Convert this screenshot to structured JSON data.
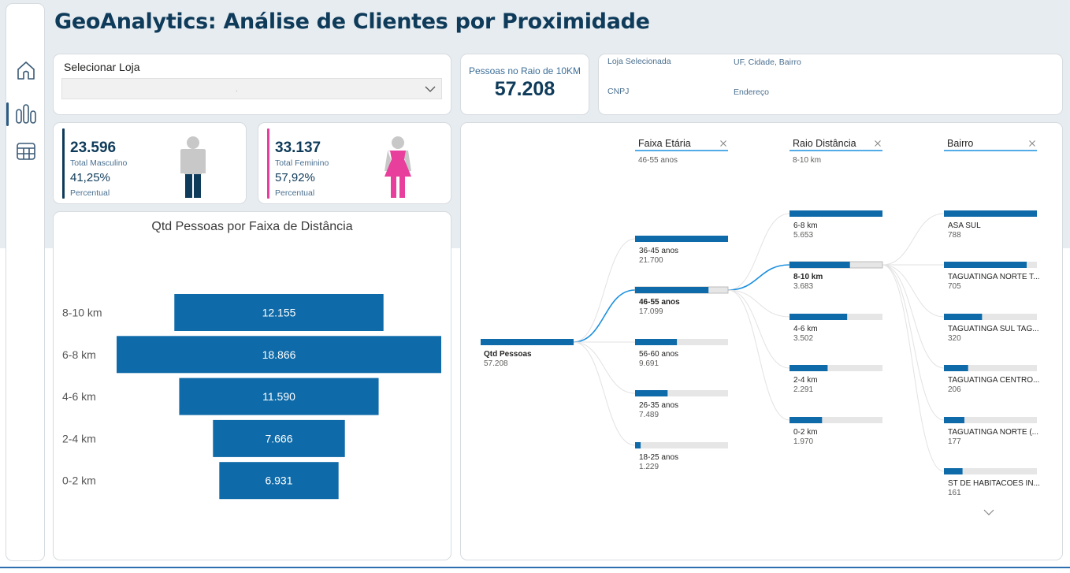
{
  "title": "GeoAnalytics: Análise de Clientes por Proximidade",
  "nav": {
    "items": [
      {
        "icon": "home-icon",
        "active": false
      },
      {
        "icon": "bar-chart-icon",
        "active": true
      },
      {
        "icon": "table-icon",
        "active": false
      }
    ]
  },
  "slicer": {
    "label": "Selecionar Loja",
    "value": "."
  },
  "kpi": {
    "label": "Pessoas no Raio de 10KM",
    "value": "57.208"
  },
  "info": {
    "loja_label": "Loja Selecionada",
    "uf_label": "UF, Cidade, Bairro",
    "cnpj_label": "CNPJ",
    "endereco_label": "Endereço"
  },
  "male": {
    "total": "23.596",
    "total_label": "Total Masculino",
    "pct": "41,25%",
    "pct_label": "Percentual",
    "accent": "#0f3b5a"
  },
  "female": {
    "total": "33.137",
    "total_label": "Total Feminino",
    "pct": "57,92%",
    "pct_label": "Percentual",
    "accent": "#e83e9c"
  },
  "chart_data": {
    "type": "bar",
    "subtype": "funnel",
    "title": "Qtd Pessoas por Faixa de Distância",
    "categories": [
      "8-10 km",
      "6-8 km",
      "4-6 km",
      "2-4 km",
      "0-2 km"
    ],
    "values": [
      12155,
      18866,
      11590,
      7666,
      6931
    ],
    "value_labels": [
      "12.155",
      "18.866",
      "11.590",
      "7.666",
      "6.931"
    ],
    "color": "#0e6aa8"
  },
  "tree": {
    "root": {
      "label": "Qtd Pessoas",
      "value": "57.208"
    },
    "levels": [
      {
        "header": "Faixa Etária",
        "selected": "46-55 anos",
        "nodes": [
          {
            "label": "36-45 anos",
            "value": "21.700",
            "fraction": 1.0,
            "selected": false
          },
          {
            "label": "46-55 anos",
            "value": "17.099",
            "fraction": 0.79,
            "selected": true
          },
          {
            "label": "56-60 anos",
            "value": "9.691",
            "fraction": 0.45,
            "selected": false
          },
          {
            "label": "26-35 anos",
            "value": "7.489",
            "fraction": 0.35,
            "selected": false
          },
          {
            "label": "18-25 anos",
            "value": "1.229",
            "fraction": 0.06,
            "selected": false
          }
        ]
      },
      {
        "header": "Raio Distância",
        "selected": "8-10 km",
        "nodes": [
          {
            "label": "6-8 km",
            "value": "5.653",
            "fraction": 1.0,
            "selected": false
          },
          {
            "label": "8-10 km",
            "value": "3.683",
            "fraction": 0.65,
            "selected": true
          },
          {
            "label": "4-6 km",
            "value": "3.502",
            "fraction": 0.62,
            "selected": false
          },
          {
            "label": "2-4 km",
            "value": "2.291",
            "fraction": 0.41,
            "selected": false
          },
          {
            "label": "0-2 km",
            "value": "1.970",
            "fraction": 0.35,
            "selected": false
          }
        ]
      },
      {
        "header": "Bairro",
        "selected": "",
        "nodes": [
          {
            "label": "ASA SUL",
            "value": "788",
            "fraction": 1.0,
            "selected": false
          },
          {
            "label": "TAGUATINGA NORTE T...",
            "value": "705",
            "fraction": 0.89,
            "selected": false
          },
          {
            "label": "TAGUATINGA SUL TAG...",
            "value": "320",
            "fraction": 0.41,
            "selected": false
          },
          {
            "label": "TAGUATINGA CENTRO...",
            "value": "206",
            "fraction": 0.26,
            "selected": false
          },
          {
            "label": "TAGUATINGA NORTE (...",
            "value": "177",
            "fraction": 0.22,
            "selected": false
          },
          {
            "label": "ST DE HABITACOES IN...",
            "value": "161",
            "fraction": 0.2,
            "selected": false
          }
        ]
      }
    ],
    "colors": {
      "bar": "#0e6aa8",
      "track": "#e6e6e6",
      "link": "#e2e2e2",
      "link_selected": "#1a8fe0",
      "header_underline": "#1a8fe0"
    }
  }
}
